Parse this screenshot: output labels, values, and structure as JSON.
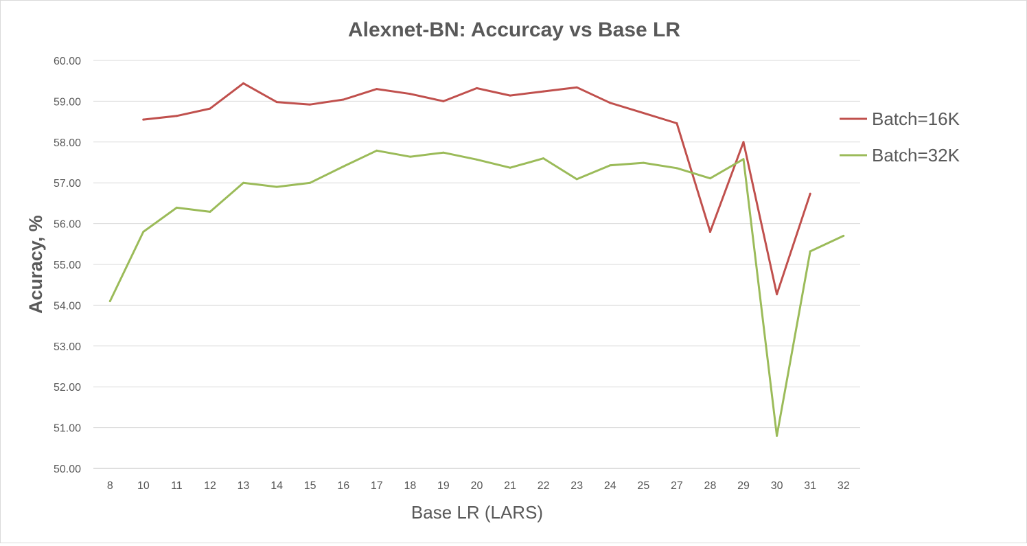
{
  "chart_data": {
    "type": "line",
    "title": "Alexnet-BN: Accurcay vs Base LR",
    "xlabel": "Base LR (LARS)",
    "ylabel": "Acuracy, %",
    "categories": [
      "8",
      "10",
      "11",
      "12",
      "13",
      "14",
      "15",
      "16",
      "17",
      "18",
      "19",
      "20",
      "21",
      "22",
      "23",
      "24",
      "25",
      "27",
      "28",
      "29",
      "30",
      "31",
      "32"
    ],
    "ylim": [
      50,
      60
    ],
    "yticks": [
      "50.00",
      "51.00",
      "52.00",
      "53.00",
      "54.00",
      "55.00",
      "56.00",
      "57.00",
      "58.00",
      "59.00",
      "60.00"
    ],
    "grid": true,
    "legend_position": "right",
    "series": [
      {
        "name": "Batch=16K",
        "color": "#c0504d",
        "values": [
          null,
          58.55,
          58.64,
          58.82,
          59.44,
          58.98,
          58.92,
          59.04,
          59.3,
          59.18,
          59.0,
          59.32,
          59.14,
          59.24,
          59.34,
          58.96,
          58.71,
          58.46,
          55.8,
          58.0,
          54.27,
          56.73,
          null
        ]
      },
      {
        "name": "Batch=32K",
        "color": "#9bbb59",
        "values": [
          54.1,
          55.8,
          56.39,
          56.29,
          57.0,
          56.9,
          57.0,
          57.4,
          57.79,
          57.64,
          57.74,
          57.57,
          57.37,
          57.6,
          57.09,
          57.43,
          57.49,
          57.36,
          57.11,
          57.58,
          50.8,
          55.32,
          55.7
        ]
      }
    ]
  }
}
